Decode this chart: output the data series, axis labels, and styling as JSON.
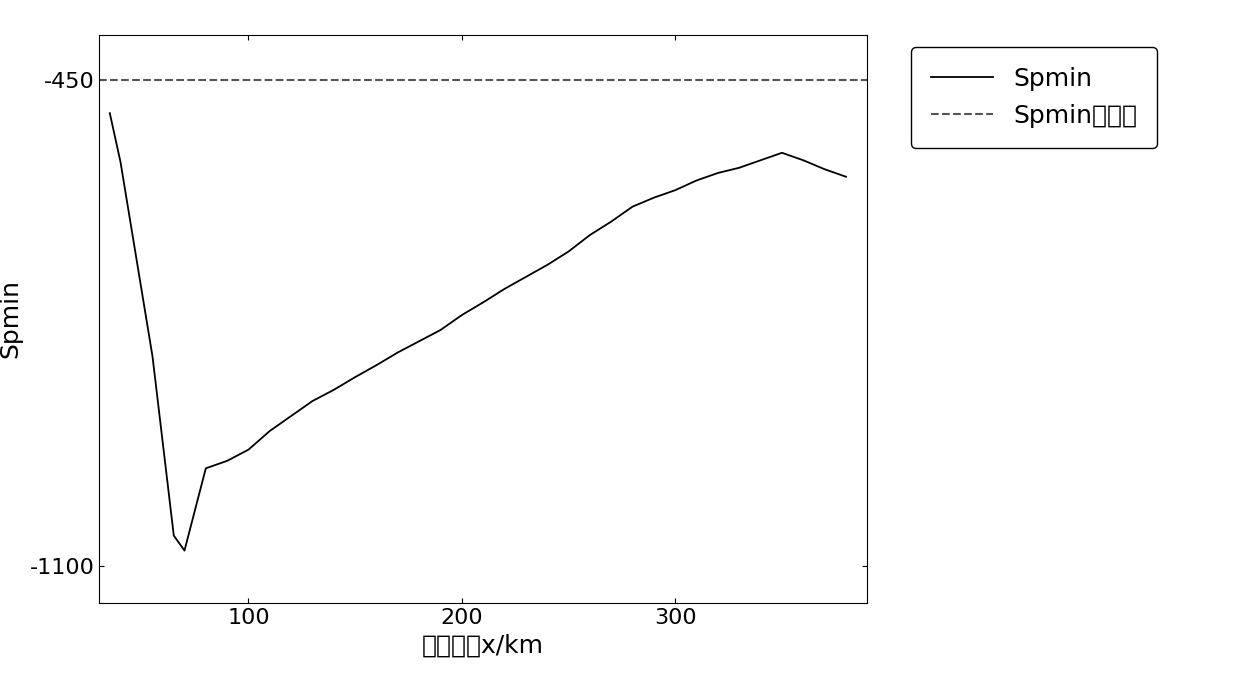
{
  "title": "",
  "xlabel": "故障距离x/km",
  "ylabel": "Spmin",
  "xlim": [
    30,
    390
  ],
  "ylim": [
    -1150,
    -390
  ],
  "yticks": [
    -1100,
    -450
  ],
  "xticks": [
    100,
    200,
    300
  ],
  "dashed_y": -450,
  "spmin_x": [
    35,
    40,
    55,
    65,
    70,
    80,
    90,
    100,
    110,
    120,
    130,
    140,
    150,
    160,
    170,
    180,
    190,
    200,
    210,
    220,
    225,
    230,
    240,
    250,
    260,
    270,
    280,
    290,
    300,
    310,
    320,
    330,
    340,
    350,
    360,
    370,
    380
  ],
  "spmin_y": [
    -495,
    -560,
    -820,
    -1060,
    -1080,
    -970,
    -960,
    -945,
    -920,
    -900,
    -880,
    -865,
    -848,
    -832,
    -815,
    -800,
    -785,
    -765,
    -748,
    -730,
    -722,
    -714,
    -698,
    -680,
    -658,
    -640,
    -620,
    -608,
    -598,
    -585,
    -575,
    -568,
    -558,
    -548,
    -558,
    -570,
    -580
  ],
  "line_color": "#000000",
  "dash_color": "#555555",
  "background_color": "#ffffff",
  "legend_spmin": "Spmin",
  "legend_dashed": "Spmin整定値",
  "line_width": 1.3,
  "dash_linewidth": 1.5,
  "font_size_label": 18,
  "font_size_tick": 16,
  "font_size_legend": 18
}
